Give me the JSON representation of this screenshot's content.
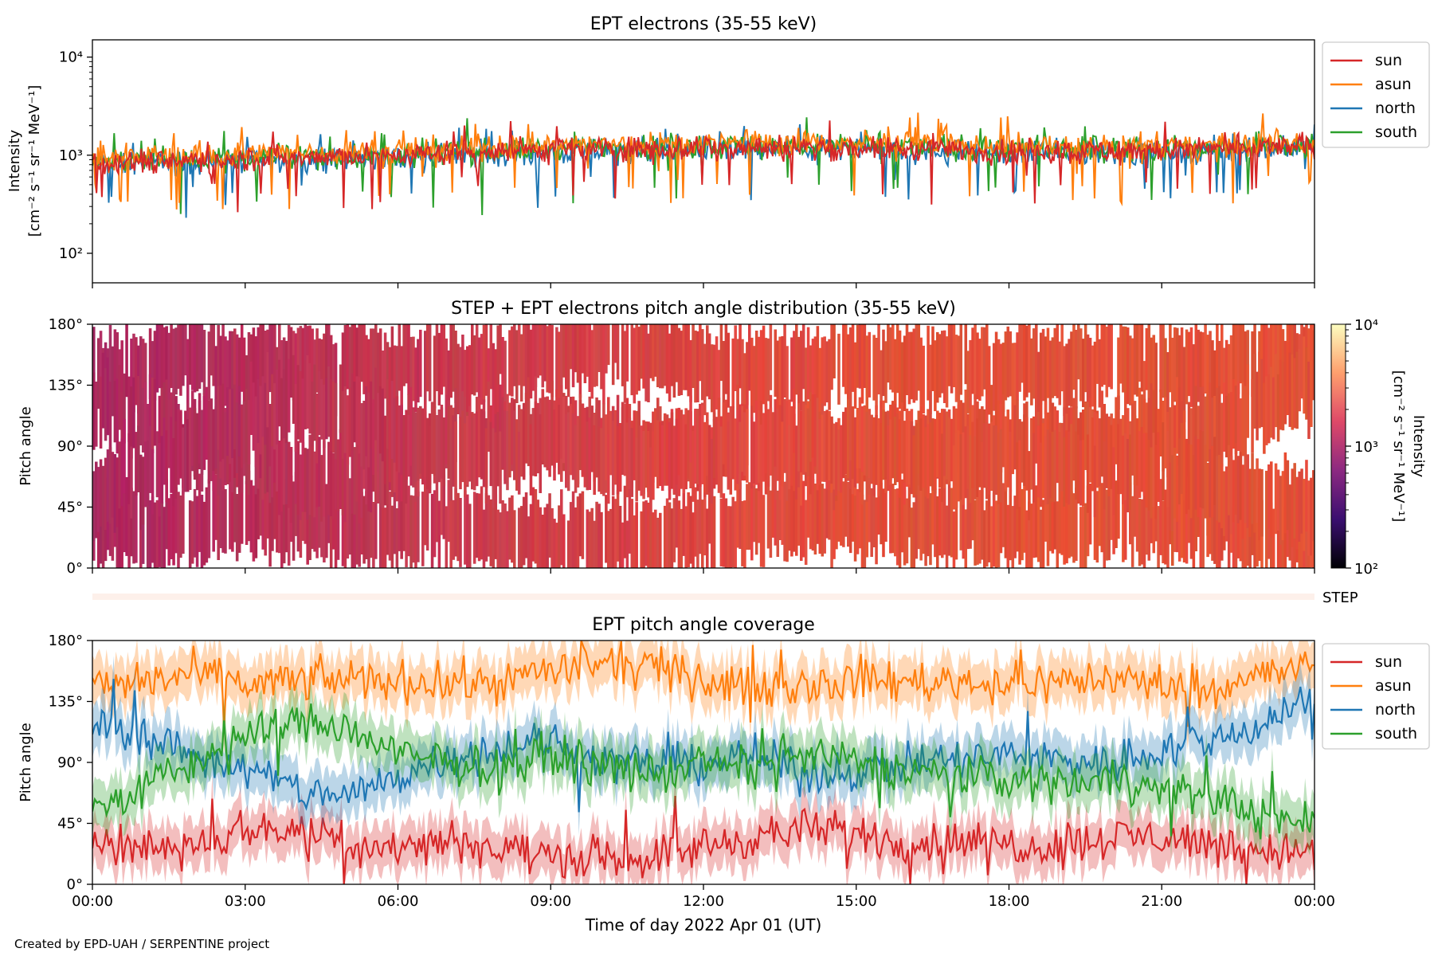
{
  "footer": {
    "credit": "Created by EPD-UAH / SERPENTINE project"
  },
  "colors": {
    "sun": "#d62728",
    "asun": "#ff7f0e",
    "north": "#1f77b4",
    "south": "#2ca02c",
    "step_strip": "#fdf0ea"
  },
  "chart_data": [
    {
      "type": "line",
      "title": "EPT electrons (35-55 keV)",
      "ylabel_line1": "Intensity",
      "ylabel_line2": "[cm⁻² s⁻¹ sr⁻¹ MeV⁻¹]",
      "yscale": "log",
      "ylim": [
        50,
        15000
      ],
      "yticks": [
        {
          "value": 100,
          "label": "10²"
        },
        {
          "value": 1000,
          "label": "10³"
        },
        {
          "value": 10000,
          "label": "10⁴"
        }
      ],
      "xlim": [
        "2022-04-01 00:00",
        "2022-04-02 00:00"
      ],
      "legend": {
        "placement": "outside-right-top",
        "entries": [
          "sun",
          "asun",
          "north",
          "south"
        ]
      },
      "series": [
        {
          "name": "sun",
          "x_hours": [
            0,
            2,
            4,
            6,
            8,
            10,
            12,
            14,
            16,
            18,
            20,
            22,
            24
          ],
          "values": [
            850,
            900,
            950,
            1000,
            1100,
            1150,
            1200,
            1200,
            1150,
            1100,
            1100,
            1150,
            1250
          ]
        },
        {
          "name": "asun",
          "x_hours": [
            0,
            2,
            4,
            6,
            8,
            10,
            12,
            14,
            16,
            18,
            20,
            22,
            24
          ],
          "values": [
            950,
            1000,
            1050,
            1100,
            1200,
            1300,
            1350,
            1350,
            1300,
            1250,
            1200,
            1250,
            1350
          ]
        },
        {
          "name": "north",
          "x_hours": [
            0,
            2,
            4,
            6,
            8,
            10,
            12,
            14,
            16,
            18,
            20,
            22,
            24
          ],
          "values": [
            800,
            850,
            900,
            950,
            1050,
            1100,
            1150,
            1150,
            1100,
            1050,
            1050,
            1100,
            1200
          ]
        },
        {
          "name": "south",
          "x_hours": [
            0,
            2,
            4,
            6,
            8,
            10,
            12,
            14,
            16,
            18,
            20,
            22,
            24
          ],
          "values": [
            850,
            900,
            950,
            1000,
            1100,
            1200,
            1250,
            1250,
            1200,
            1150,
            1150,
            1200,
            1250
          ]
        }
      ]
    },
    {
      "type": "heatmap",
      "title": "STEP + EPT electrons pitch angle distribution (35-55 keV)",
      "ylabel": "Pitch angle",
      "ylim": [
        0,
        180
      ],
      "yticks": [
        {
          "value": 0,
          "label": "0°"
        },
        {
          "value": 45,
          "label": "45°"
        },
        {
          "value": 90,
          "label": "90°"
        },
        {
          "value": 135,
          "label": "135°"
        },
        {
          "value": 180,
          "label": "180°"
        }
      ],
      "colorbar": {
        "label_line1": "Intensity",
        "label_line2": "[cm⁻² s⁻¹ sr⁻¹ MeV⁻¹]",
        "scale": "log",
        "range": [
          100,
          10000
        ],
        "ticks": [
          {
            "value": 100,
            "label": "10²"
          },
          {
            "value": 1000,
            "label": "10³"
          },
          {
            "value": 10000,
            "label": "10⁴"
          }
        ]
      },
      "step_label": "STEP"
    },
    {
      "type": "line",
      "title": "EPT pitch angle coverage",
      "ylabel": "Pitch angle",
      "xlabel": "Time of day 2022 Apr 01 (UT)",
      "ylim": [
        0,
        180
      ],
      "yticks": [
        {
          "value": 0,
          "label": "0°"
        },
        {
          "value": 45,
          "label": "45°"
        },
        {
          "value": 90,
          "label": "90°"
        },
        {
          "value": 135,
          "label": "135°"
        },
        {
          "value": 180,
          "label": "180°"
        }
      ],
      "xticks": [
        "00:00",
        "03:00",
        "06:00",
        "09:00",
        "12:00",
        "15:00",
        "18:00",
        "21:00",
        "00:00"
      ],
      "legend": {
        "placement": "outside-right-top",
        "entries": [
          "sun",
          "asun",
          "north",
          "south"
        ]
      },
      "series": [
        {
          "name": "sun",
          "x_hours": [
            0,
            1,
            2,
            3,
            4,
            5,
            6,
            7,
            8,
            9,
            10,
            11,
            12,
            13,
            14,
            15,
            16,
            17,
            18,
            19,
            20,
            21,
            22,
            23,
            24
          ],
          "values": [
            35,
            28,
            30,
            40,
            42,
            30,
            28,
            35,
            25,
            22,
            20,
            20,
            28,
            35,
            40,
            38,
            30,
            32,
            30,
            28,
            35,
            35,
            30,
            25,
            25
          ]
        },
        {
          "name": "asun",
          "x_hours": [
            0,
            1,
            2,
            3,
            4,
            5,
            6,
            7,
            8,
            9,
            10,
            11,
            12,
            13,
            14,
            15,
            16,
            17,
            18,
            19,
            20,
            21,
            22,
            23,
            24
          ],
          "values": [
            145,
            150,
            155,
            148,
            150,
            152,
            150,
            148,
            150,
            158,
            162,
            160,
            150,
            145,
            148,
            150,
            150,
            150,
            148,
            150,
            152,
            148,
            145,
            155,
            160
          ]
        },
        {
          "name": "north",
          "x_hours": [
            0,
            1,
            2,
            3,
            4,
            5,
            6,
            7,
            8,
            9,
            10,
            11,
            12,
            13,
            14,
            15,
            16,
            17,
            18,
            19,
            20,
            21,
            22,
            23,
            24
          ],
          "values": [
            120,
            110,
            95,
            85,
            70,
            65,
            80,
            95,
            100,
            105,
            92,
            88,
            90,
            95,
            80,
            85,
            90,
            92,
            95,
            92,
            90,
            100,
            105,
            120,
            140
          ]
        },
        {
          "name": "south",
          "x_hours": [
            0,
            1,
            2,
            3,
            4,
            5,
            6,
            7,
            8,
            9,
            10,
            11,
            12,
            13,
            14,
            15,
            16,
            17,
            18,
            19,
            20,
            21,
            22,
            23,
            24
          ],
          "values": [
            55,
            70,
            90,
            110,
            120,
            115,
            95,
            90,
            85,
            95,
            88,
            80,
            90,
            85,
            95,
            90,
            85,
            80,
            78,
            75,
            80,
            70,
            65,
            50,
            45
          ]
        }
      ]
    }
  ]
}
